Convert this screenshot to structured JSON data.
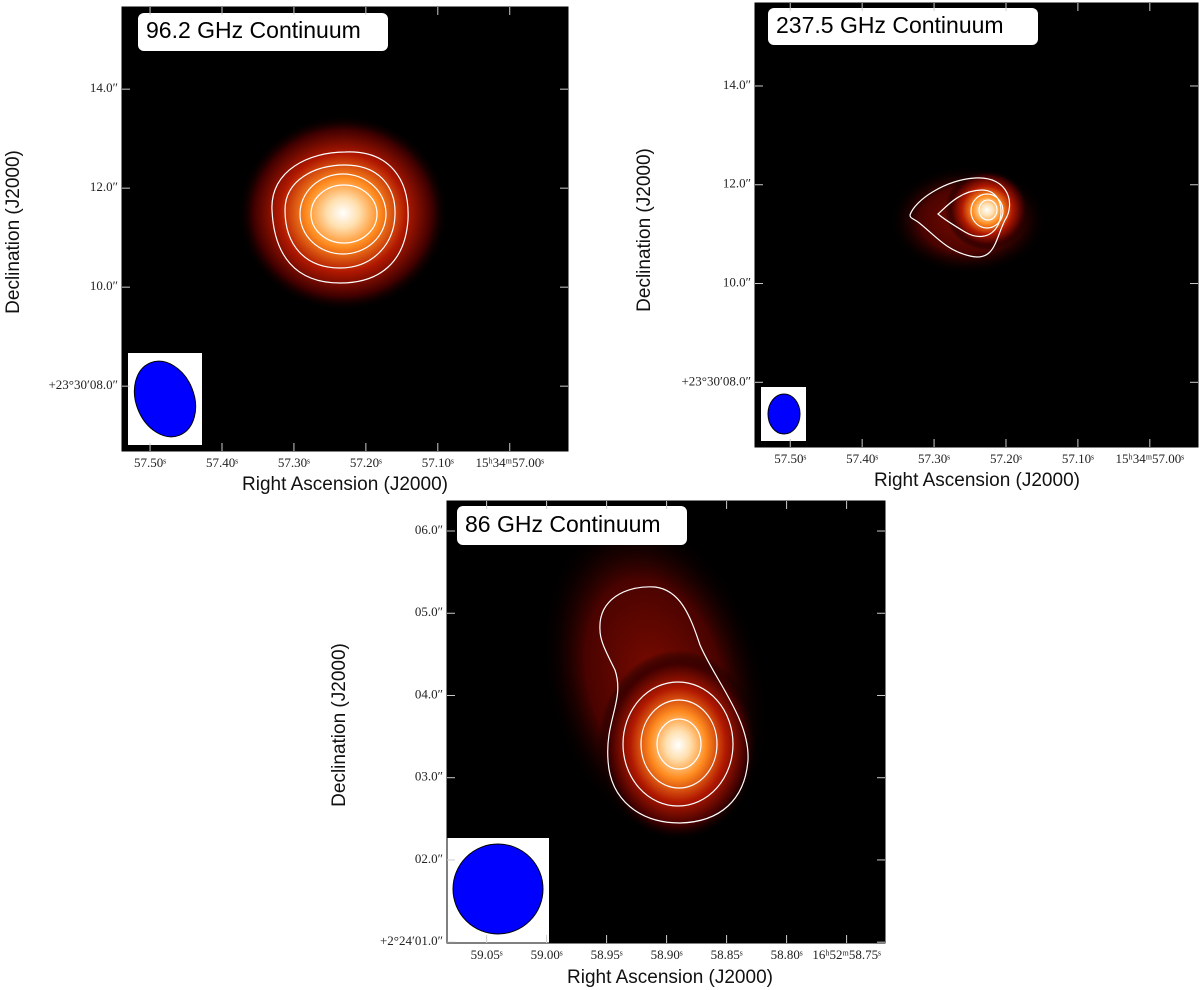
{
  "chart_data": [
    {
      "type": "image",
      "title": "96.2 GHz Continuum",
      "xlabel": "Right Ascension (J2000)",
      "ylabel": "Declination (J2000)",
      "xlim": [
        57.539,
        56.919
      ],
      "ylim": [
        6.69,
        15.66
      ],
      "xticks": [
        {
          "value": 57.5,
          "label": "57.50ˢ"
        },
        {
          "value": 57.4,
          "label": "57.40ˢ"
        },
        {
          "value": 57.3,
          "label": "57.30ˢ"
        },
        {
          "value": 57.2,
          "label": "57.20ˢ"
        },
        {
          "value": 57.1,
          "label": "57.10ˢ"
        },
        {
          "value": 57.0,
          "label": "15ʰ34ᵐ57.00ˢ"
        }
      ],
      "yticks": [
        {
          "value": 14,
          "label": "14.0″"
        },
        {
          "value": 12,
          "label": "12.0″"
        },
        {
          "value": 10,
          "label": "10.0″"
        },
        {
          "value": 8,
          "label": "+23°30′08.0″"
        }
      ]
    },
    {
      "type": "image",
      "title": "237.5 GHz Continuum",
      "xlabel": "Right Ascension (J2000)",
      "ylabel": "Declination (J2000)",
      "xlim": [
        57.549,
        56.933
      ],
      "ylim": [
        6.69,
        15.68
      ],
      "xticks": [
        {
          "value": 57.5,
          "label": "57.50ˢ"
        },
        {
          "value": 57.4,
          "label": "57.40ˢ"
        },
        {
          "value": 57.3,
          "label": "57.30ˢ"
        },
        {
          "value": 57.2,
          "label": "57.20ˢ"
        },
        {
          "value": 57.1,
          "label": "57.10ˢ"
        },
        {
          "value": 57.0,
          "label": "15ʰ34ᵐ57.00ˢ"
        }
      ],
      "yticks": [
        {
          "value": 14,
          "label": "14.0″"
        },
        {
          "value": 12,
          "label": "12.0″"
        },
        {
          "value": 10,
          "label": "10.0″"
        },
        {
          "value": 8,
          "label": "+23°30′08.0″"
        }
      ]
    },
    {
      "type": "image",
      "title": "86 GHz Continuum",
      "xlabel": "Right Ascension (J2000)",
      "ylabel": "Declination (J2000)",
      "xlim": [
        59.083,
        58.718
      ],
      "ylim": [
        0.99,
        6.365
      ],
      "xticks": [
        {
          "value": 59.05,
          "label": "59.05ˢ"
        },
        {
          "value": 59.0,
          "label": "59.00ˢ"
        },
        {
          "value": 58.95,
          "label": "58.95ˢ"
        },
        {
          "value": 58.9,
          "label": "58.90ˢ"
        },
        {
          "value": 58.85,
          "label": "58.85ˢ"
        },
        {
          "value": 58.8,
          "label": "58.80ˢ"
        },
        {
          "value": 58.75,
          "label": "16ʰ52ᵐ58.75ˢ"
        }
      ],
      "yticks": [
        {
          "value": 6,
          "label": "06.0″"
        },
        {
          "value": 5,
          "label": "05.0″"
        },
        {
          "value": 4,
          "label": "04.0″"
        },
        {
          "value": 3,
          "label": "03.0″"
        },
        {
          "value": 2,
          "label": "02.0″"
        },
        {
          "value": 1,
          "label": "+2°24′01.0″"
        }
      ]
    }
  ]
}
